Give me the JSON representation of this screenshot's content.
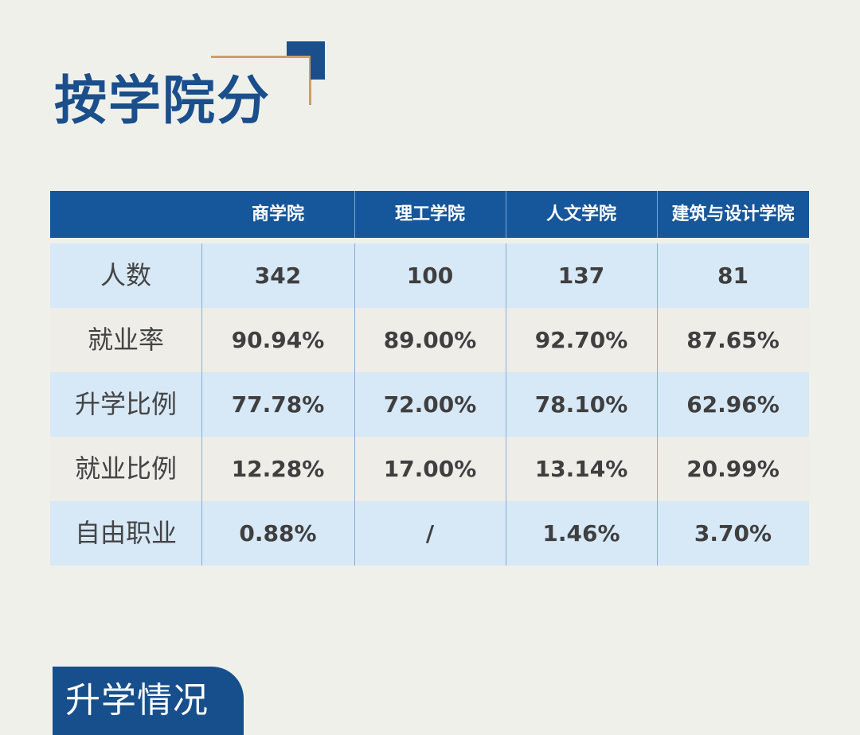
{
  "title": "按学院分",
  "colors": {
    "accent_blue": "#16569a",
    "gold": "#c9a06a",
    "row_blue": "#d7e8f7",
    "row_grey": "#eeede8"
  },
  "table": {
    "columns": [
      "",
      "商学院",
      "理工学院",
      "人文学院",
      "建筑与设计学院"
    ],
    "rows": [
      {
        "label": "人数",
        "values": [
          "342",
          "100",
          "137",
          "81"
        ]
      },
      {
        "label": "就业率",
        "values": [
          "90.94%",
          "89.00%",
          "92.70%",
          "87.65%"
        ]
      },
      {
        "label": "升学比例",
        "values": [
          "77.78%",
          "72.00%",
          "78.10%",
          "62.96%"
        ]
      },
      {
        "label": "就业比例",
        "values": [
          "12.28%",
          "17.00%",
          "13.14%",
          "20.99%"
        ]
      },
      {
        "label": "自由职业",
        "values": [
          "0.88%",
          "/",
          "1.46%",
          "3.70%"
        ]
      }
    ]
  },
  "section_badge": "升学情况"
}
